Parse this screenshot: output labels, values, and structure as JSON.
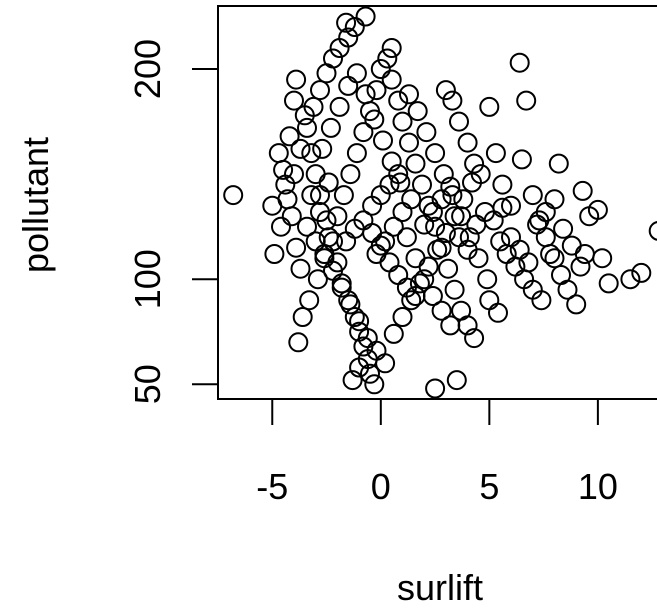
{
  "chart_data": {
    "type": "scatter",
    "title": "",
    "xlabel": "surlift",
    "ylabel": "pollutant",
    "xlim": [
      -7.5,
      13
    ],
    "ylim": [
      43,
      230
    ],
    "xticks": [
      -5,
      0,
      5,
      10
    ],
    "yticks": [
      50,
      100,
      200
    ],
    "xtick_labels": [
      "-5",
      "0",
      "5",
      "10"
    ],
    "ytick_labels": [
      "50",
      "100",
      "200"
    ],
    "grid": false,
    "legend": "none",
    "marker": "open-circle",
    "color": "#000000",
    "points": [
      [
        -6.8,
        140
      ],
      [
        -5.0,
        135
      ],
      [
        -4.9,
        112
      ],
      [
        -4.5,
        152
      ],
      [
        -4.2,
        168
      ],
      [
        -4.0,
        185
      ],
      [
        -3.9,
        195
      ],
      [
        -3.5,
        178
      ],
      [
        -3.2,
        160
      ],
      [
        -3.0,
        150
      ],
      [
        -2.8,
        140
      ],
      [
        -2.5,
        128
      ],
      [
        -2.2,
        118
      ],
      [
        -2.0,
        108
      ],
      [
        -1.8,
        98
      ],
      [
        -1.5,
        90
      ],
      [
        -1.2,
        82
      ],
      [
        -1.0,
        75
      ],
      [
        -0.8,
        68
      ],
      [
        -0.6,
        62
      ],
      [
        -0.5,
        55
      ],
      [
        -0.3,
        50
      ],
      [
        -1.3,
        52
      ],
      [
        -1.0,
        58
      ],
      [
        -3.8,
        70
      ],
      [
        -3.6,
        82
      ],
      [
        -3.3,
        90
      ],
      [
        -2.9,
        100
      ],
      [
        -2.6,
        110
      ],
      [
        -2.4,
        120
      ],
      [
        -2.0,
        130
      ],
      [
        -1.7,
        140
      ],
      [
        -1.4,
        150
      ],
      [
        -1.1,
        160
      ],
      [
        -0.8,
        170
      ],
      [
        -0.5,
        180
      ],
      [
        -0.2,
        190
      ],
      [
        0.0,
        200
      ],
      [
        0.3,
        205
      ],
      [
        0.5,
        210
      ],
      [
        -1.5,
        215
      ],
      [
        -1.2,
        220
      ],
      [
        -0.7,
        225
      ],
      [
        -1.6,
        222
      ],
      [
        0.5,
        195
      ],
      [
        0.8,
        185
      ],
      [
        1.0,
        175
      ],
      [
        1.3,
        165
      ],
      [
        1.6,
        155
      ],
      [
        1.9,
        145
      ],
      [
        2.2,
        135
      ],
      [
        2.5,
        125
      ],
      [
        2.8,
        115
      ],
      [
        3.1,
        105
      ],
      [
        3.4,
        95
      ],
      [
        3.7,
        85
      ],
      [
        4.0,
        78
      ],
      [
        4.3,
        72
      ],
      [
        2.5,
        48
      ],
      [
        3.5,
        52
      ],
      [
        3.0,
        190
      ],
      [
        3.3,
        185
      ],
      [
        3.6,
        175
      ],
      [
        4.0,
        165
      ],
      [
        4.3,
        155
      ],
      [
        4.6,
        150
      ],
      [
        5.0,
        182
      ],
      [
        5.3,
        160
      ],
      [
        5.6,
        145
      ],
      [
        6.0,
        135
      ],
      [
        6.4,
        203
      ],
      [
        6.7,
        185
      ],
      [
        6.5,
        157
      ],
      [
        7.0,
        140
      ],
      [
        7.3,
        128
      ],
      [
        7.6,
        120
      ],
      [
        8.0,
        110
      ],
      [
        8.3,
        102
      ],
      [
        8.6,
        95
      ],
      [
        9.0,
        88
      ],
      [
        8.2,
        155
      ],
      [
        9.3,
        142
      ],
      [
        9.6,
        130
      ],
      [
        10.0,
        133
      ],
      [
        9.4,
        112
      ],
      [
        10.2,
        110
      ],
      [
        10.5,
        98
      ],
      [
        11.5,
        100
      ],
      [
        12.0,
        103
      ],
      [
        12.8,
        123
      ],
      [
        -4.7,
        160
      ],
      [
        -4.4,
        145
      ],
      [
        -4.1,
        130
      ],
      [
        -3.9,
        115
      ],
      [
        -3.7,
        105
      ],
      [
        -0.2,
        112
      ],
      [
        0.2,
        118
      ],
      [
        0.6,
        125
      ],
      [
        1.0,
        132
      ],
      [
        1.4,
        138
      ],
      [
        -0.4,
        135
      ],
      [
        0.0,
        140
      ],
      [
        0.4,
        145
      ],
      [
        0.8,
        150
      ],
      [
        1.2,
        120
      ],
      [
        1.6,
        110
      ],
      [
        2.0,
        100
      ],
      [
        2.4,
        92
      ],
      [
        2.8,
        85
      ],
      [
        3.2,
        78
      ],
      [
        5.5,
        118
      ],
      [
        5.8,
        112
      ],
      [
        6.2,
        106
      ],
      [
        6.6,
        100
      ],
      [
        7.0,
        95
      ],
      [
        7.4,
        90
      ],
      [
        7.8,
        112
      ],
      [
        8.4,
        124
      ],
      [
        8.8,
        116
      ],
      [
        9.2,
        106
      ],
      [
        -2.7,
        162
      ],
      [
        -2.3,
        172
      ],
      [
        -1.9,
        182
      ],
      [
        -1.5,
        192
      ],
      [
        -1.1,
        198
      ],
      [
        -0.7,
        188
      ],
      [
        -0.3,
        176
      ],
      [
        0.1,
        166
      ],
      [
        0.5,
        156
      ],
      [
        0.9,
        146
      ],
      [
        1.3,
        188
      ],
      [
        1.7,
        180
      ],
      [
        2.1,
        170
      ],
      [
        2.5,
        160
      ],
      [
        2.9,
        150
      ],
      [
        3.3,
        140
      ],
      [
        3.7,
        130
      ],
      [
        4.1,
        120
      ],
      [
        4.5,
        110
      ],
      [
        4.9,
        100
      ],
      [
        -3.4,
        125
      ],
      [
        -3.0,
        118
      ],
      [
        -2.6,
        112
      ],
      [
        -2.2,
        104
      ],
      [
        -1.8,
        96
      ],
      [
        -1.4,
        88
      ],
      [
        -1.0,
        80
      ],
      [
        -0.6,
        72
      ],
      [
        -0.2,
        66
      ],
      [
        0.2,
        60
      ],
      [
        0.6,
        74
      ],
      [
        1.0,
        82
      ],
      [
        1.4,
        90
      ],
      [
        1.8,
        98
      ],
      [
        2.2,
        106
      ],
      [
        2.6,
        114
      ],
      [
        3.0,
        122
      ],
      [
        3.4,
        130
      ],
      [
        3.8,
        138
      ],
      [
        4.2,
        146
      ],
      [
        -4.6,
        125
      ],
      [
        -4.3,
        138
      ],
      [
        -4.0,
        150
      ],
      [
        -3.7,
        162
      ],
      [
        -3.4,
        172
      ],
      [
        -3.1,
        182
      ],
      [
        -2.8,
        190
      ],
      [
        -2.5,
        198
      ],
      [
        -2.2,
        205
      ],
      [
        -1.9,
        210
      ],
      [
        5.2,
        128
      ],
      [
        5.6,
        134
      ],
      [
        6.0,
        120
      ],
      [
        6.4,
        114
      ],
      [
        6.8,
        108
      ],
      [
        7.2,
        126
      ],
      [
        7.6,
        132
      ],
      [
        8.0,
        138
      ],
      [
        5.0,
        90
      ],
      [
        5.4,
        84
      ],
      [
        -1.6,
        118
      ],
      [
        -1.2,
        124
      ],
      [
        -0.8,
        128
      ],
      [
        -0.4,
        122
      ],
      [
        0.0,
        116
      ],
      [
        0.4,
        108
      ],
      [
        0.8,
        102
      ],
      [
        1.2,
        96
      ],
      [
        1.6,
        92
      ],
      [
        2.0,
        126
      ],
      [
        2.4,
        132
      ],
      [
        2.8,
        138
      ],
      [
        3.2,
        144
      ],
      [
        3.6,
        120
      ],
      [
        4.0,
        114
      ],
      [
        4.4,
        126
      ],
      [
        4.8,
        132
      ],
      [
        -3.2,
        140
      ],
      [
        -2.8,
        132
      ],
      [
        -2.4,
        146
      ]
    ]
  }
}
